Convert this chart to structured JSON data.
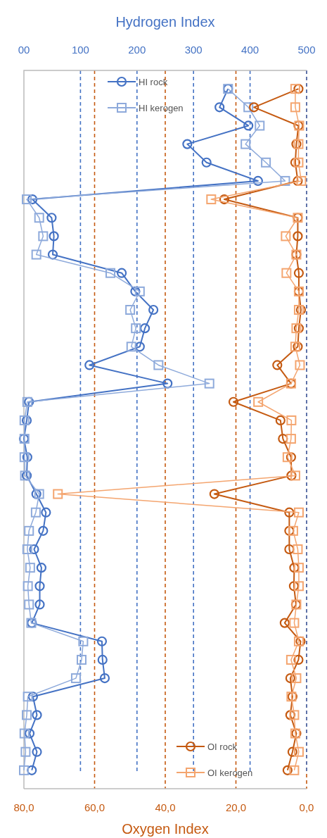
{
  "chart_data": {
    "type": "line",
    "orientation": "horizontal",
    "x2label": "Hydrogen Index",
    "xlabel": "Oxygen Index",
    "categories": [
      null,
      null,
      null,
      null,
      null,
      null,
      null,
      null,
      null,
      null,
      null,
      null,
      null,
      null,
      null,
      null,
      null,
      null,
      null,
      null,
      null,
      null,
      null,
      null,
      null,
      null,
      null,
      null,
      null,
      null,
      null,
      null,
      null,
      null,
      null,
      null,
      null,
      null
    ],
    "x2lim": [
      0,
      500
    ],
    "x2ticks": [
      {
        "value": 0,
        "label": "00"
      },
      100,
      200,
      300,
      400,
      500
    ],
    "xlim": [
      80,
      0
    ],
    "xticks": [
      {
        "value": 80,
        "label": "80,0"
      },
      {
        "value": 60,
        "label": "60,0"
      },
      {
        "value": 40,
        "label": "40,0"
      },
      {
        "value": 20,
        "label": "20,0"
      },
      {
        "value": 0,
        "label": "0,0"
      }
    ],
    "grid": true,
    "legend": "right",
    "line_style": "solid",
    "series": [
      {
        "name": "HI rock",
        "axis": "x2",
        "color": "#4472c4",
        "marker": "circle",
        "values": [
          361,
          346,
          397,
          289,
          323,
          414,
          15,
          49,
          53,
          51,
          173,
          197,
          229,
          214,
          205,
          116,
          254,
          9,
          5,
          0,
          6,
          5,
          22,
          39,
          34,
          18,
          31,
          28,
          28,
          14,
          138,
          139,
          143,
          16,
          23,
          10,
          23,
          14
        ]
      },
      {
        "name": "HI kerogen",
        "axis": "x2",
        "color": "#8eaadb",
        "marker": "square",
        "values": [
          361,
          397,
          417,
          392,
          428,
          462,
          5,
          27,
          34,
          22,
          153,
          205,
          188,
          198,
          190,
          238,
          328,
          6,
          1,
          1,
          1,
          2,
          27,
          21,
          9,
          6,
          11,
          7,
          9,
          13,
          105,
          102,
          92,
          7,
          5,
          1,
          3,
          0
        ]
      },
      {
        "name": "OI rock",
        "color": "#c55a11",
        "marker": "circle",
        "values": [
          2.3,
          14.9,
          2.3,
          2.9,
          3.2,
          2.5,
          23.3,
          2.5,
          2.5,
          2.9,
          2.2,
          2.2,
          1.6,
          2.2,
          2.5,
          8.3,
          4.4,
          20.7,
          7.4,
          6.7,
          4.4,
          4.3,
          26.1,
          4.9,
          4.9,
          4.9,
          3.5,
          3.6,
          3.0,
          6.2,
          1.7,
          2.3,
          4.6,
          4.0,
          4.6,
          2.9,
          4.0,
          5.4
        ]
      },
      {
        "name": "OI kerogen",
        "color": "#f4a56f",
        "marker": "square",
        "values": [
          3.2,
          3.2,
          2.1,
          2.3,
          2.3,
          1.5,
          27,
          2.5,
          5.9,
          2.9,
          5.7,
          2.2,
          2.2,
          2.9,
          3.2,
          1.9,
          4.4,
          13.7,
          4.3,
          4.4,
          5.4,
          3.2,
          70.4,
          2.2,
          3.8,
          2.5,
          2.2,
          2.2,
          2.9,
          3.5,
          2.2,
          4.4,
          2.9,
          4.3,
          3.5,
          3.2,
          2.2,
          3.5
        ]
      }
    ]
  }
}
